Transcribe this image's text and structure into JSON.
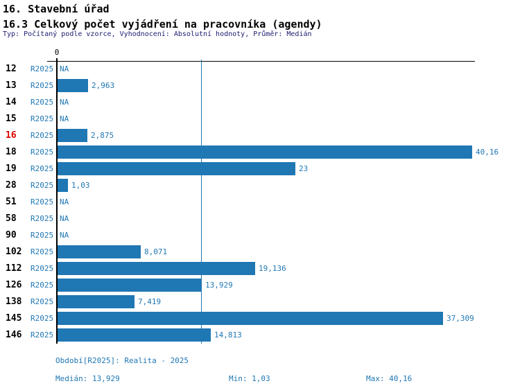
{
  "header": {
    "title": "16. Stavební úřad",
    "subtitle": "16.3 Celkový počet vyjádření na pracovníka (agendy)",
    "meta": "Typ: Počítaný podle vzorce, Vyhodnocení: Absolutní hodnoty, Průměr: Medián"
  },
  "chart_data": {
    "type": "bar",
    "orientation": "horizontal",
    "title": "16.3 Celkový počet vyjádření na pracovníka (agendy)",
    "origin_label": "0",
    "period_label": "R2025",
    "categories": [
      "12",
      "13",
      "14",
      "15",
      "16",
      "18",
      "19",
      "28",
      "51",
      "58",
      "90",
      "102",
      "112",
      "126",
      "138",
      "145",
      "146"
    ],
    "values": [
      null,
      2.963,
      null,
      null,
      2.875,
      40.16,
      23,
      1.03,
      null,
      null,
      null,
      8.071,
      19.136,
      13.929,
      7.419,
      37.309,
      14.813
    ],
    "value_labels": [
      "NA",
      "2,963",
      "NA",
      "NA",
      "2,875",
      "40,16",
      "23",
      "1,03",
      "NA",
      "NA",
      "NA",
      "8,071",
      "19,136",
      "13,929",
      "7,419",
      "37,309",
      "14,813"
    ],
    "na_label": "NA",
    "highlighted_category": "16",
    "median_value": 13.929,
    "xlim": [
      0,
      40.4
    ],
    "grid": "off",
    "bar_color": "#1f77b4",
    "highlight_color": "#dd0000",
    "axis_color": "#000000"
  },
  "footer": {
    "period_info": "Období[R2025]: Realita - 2025",
    "median": "Medián: 13,929",
    "min": "Min: 1,03",
    "max": "Max: 40,16"
  }
}
